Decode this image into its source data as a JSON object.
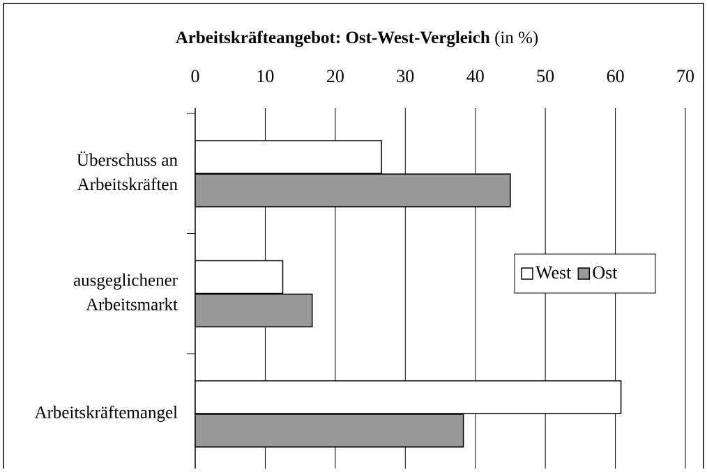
{
  "chart_data": {
    "type": "bar",
    "orientation": "horizontal",
    "title": "Arbeitskräfteangebot: Ost-West-Vergleich",
    "title_suffix": "(in %)",
    "categories": [
      [
        "Überschuss an",
        "Arbeitskräften"
      ],
      [
        "ausgeglichener",
        "Arbeitsmarkt"
      ],
      [
        "Arbeitskräftemangel"
      ]
    ],
    "series": [
      {
        "name": "West",
        "color": "#ffffff",
        "values": [
          26.6,
          12.5,
          60.8
        ]
      },
      {
        "name": "Ost",
        "color": "#999999",
        "values": [
          45.0,
          16.7,
          38.3
        ]
      }
    ],
    "xlim": [
      0,
      70
    ],
    "xticks": [
      0,
      10,
      20,
      30,
      40,
      50,
      60,
      70
    ],
    "grid": true,
    "legend": "right"
  }
}
